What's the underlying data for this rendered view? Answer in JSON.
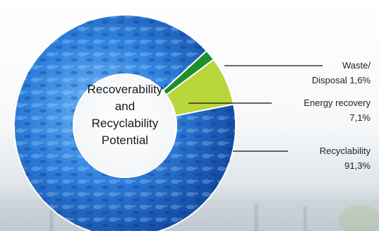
{
  "chart_data": {
    "type": "pie",
    "style": "donut",
    "center_label": [
      "Recoverability",
      "and",
      "Recyclability",
      "Potential"
    ],
    "slices": [
      {
        "name": "Recyclability",
        "value": 91.3,
        "label_lines": [
          "Recyclability",
          "91,3%"
        ],
        "color": "#2a6fd0"
      },
      {
        "name": "Energy recovery",
        "value": 7.1,
        "label_lines": [
          "Energy recovery",
          "7,1%"
        ],
        "color": "#b9d63a"
      },
      {
        "name": "Waste/Disposal",
        "value": 1.6,
        "label_lines": [
          "Waste/",
          "Disposal 1,6%"
        ],
        "color": "#1f8f2e"
      }
    ]
  }
}
